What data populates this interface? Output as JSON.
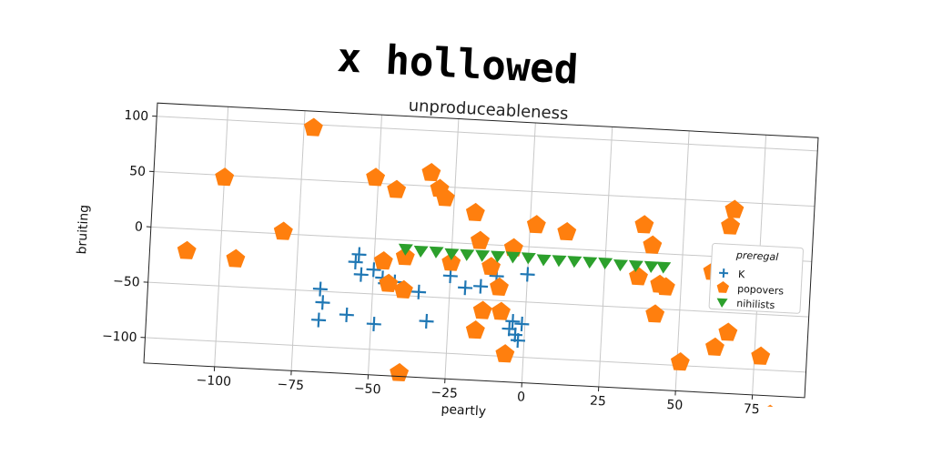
{
  "figure": {
    "title": "x hollowed"
  },
  "chart_data": {
    "type": "scatter",
    "title": "unproduceableness",
    "xlabel": "peartly",
    "ylabel": "bruiting",
    "xlim": [
      -123,
      92
    ],
    "ylim": [
      -123,
      112
    ],
    "xticks": [
      -100,
      -75,
      -50,
      -25,
      0,
      25,
      50,
      75
    ],
    "xtick_labels": [
      "−100",
      "−75",
      "−50",
      "−25",
      "0",
      "25",
      "50",
      "75"
    ],
    "yticks": [
      -100,
      -50,
      0,
      50,
      100
    ],
    "ytick_labels": [
      "−100",
      "−50",
      "0",
      "50",
      "100"
    ],
    "grid": true,
    "legend": {
      "title": "preregal",
      "placement": "right"
    },
    "series": [
      {
        "name": "K",
        "marker": "plus",
        "color": "#1f77b4",
        "points": [
          [
            -67,
            -48
          ],
          [
            -66,
            -60
          ],
          [
            -67,
            -76
          ],
          [
            -58,
            -70
          ],
          [
            -55,
            -15
          ],
          [
            -56,
            -22
          ],
          [
            -54,
            -33
          ],
          [
            -50,
            -28
          ],
          [
            -47,
            -35
          ],
          [
            -46,
            -40
          ],
          [
            -43,
            -38
          ],
          [
            -49,
            -77
          ],
          [
            -35,
            -46
          ],
          [
            -32,
            -72
          ],
          [
            -25,
            -30
          ],
          [
            -20,
            -40
          ],
          [
            -15,
            -38
          ],
          [
            -10,
            -28
          ],
          [
            -5,
            -75
          ],
          [
            -3,
            -80
          ],
          [
            -2,
            -85
          ],
          [
            -1,
            -70
          ],
          [
            -4,
            -68
          ],
          [
            0,
            -25
          ]
        ]
      },
      {
        "name": "popovers",
        "marker": "pentagon",
        "color": "#ff7f0e",
        "points": [
          [
            -111,
            -20
          ],
          [
            -100,
            48
          ],
          [
            -95,
            -25
          ],
          [
            -80,
            2
          ],
          [
            -72,
            97
          ],
          [
            -51,
            55
          ],
          [
            -44,
            45
          ],
          [
            -47,
            -20
          ],
          [
            -45,
            -40
          ],
          [
            -40,
            -15
          ],
          [
            -40,
            -45
          ],
          [
            -33,
            62
          ],
          [
            -30,
            48
          ],
          [
            -28,
            40
          ],
          [
            -25,
            -18
          ],
          [
            -18,
            28
          ],
          [
            -16,
            3
          ],
          [
            -12,
            -20
          ],
          [
            -9,
            -38
          ],
          [
            -14,
            -60
          ],
          [
            -8,
            -60
          ],
          [
            -16,
            -78
          ],
          [
            -6,
            -98
          ],
          [
            -5,
            -2
          ],
          [
            2,
            20
          ],
          [
            12,
            15
          ],
          [
            37,
            25
          ],
          [
            40,
            7
          ],
          [
            43,
            -28
          ],
          [
            45,
            -30
          ],
          [
            42,
            -55
          ],
          [
            51,
            -97
          ],
          [
            60,
            -14
          ],
          [
            62,
            -82
          ],
          [
            65,
            28
          ],
          [
            66,
            43
          ],
          [
            66,
            -68
          ],
          [
            77,
            -88
          ],
          [
            81,
            -140
          ],
          [
            36,
            -22
          ],
          [
            -40,
            -120
          ]
        ]
      },
      {
        "name": "nihilists",
        "marker": "triangle_down",
        "color": "#2ca02c",
        "points": [
          [
            -40,
            -8
          ],
          [
            -35,
            -9
          ],
          [
            -30,
            -9
          ],
          [
            -25,
            -10
          ],
          [
            -20,
            -10
          ],
          [
            -15,
            -10
          ],
          [
            -10,
            -10
          ],
          [
            -5,
            -10
          ],
          [
            0,
            -10
          ],
          [
            5,
            -11
          ],
          [
            10,
            -11
          ],
          [
            15,
            -11
          ],
          [
            20,
            -11
          ],
          [
            25,
            -11
          ],
          [
            30,
            -12
          ],
          [
            35,
            -12
          ],
          [
            40,
            -12
          ],
          [
            44,
            -12
          ]
        ]
      }
    ]
  }
}
